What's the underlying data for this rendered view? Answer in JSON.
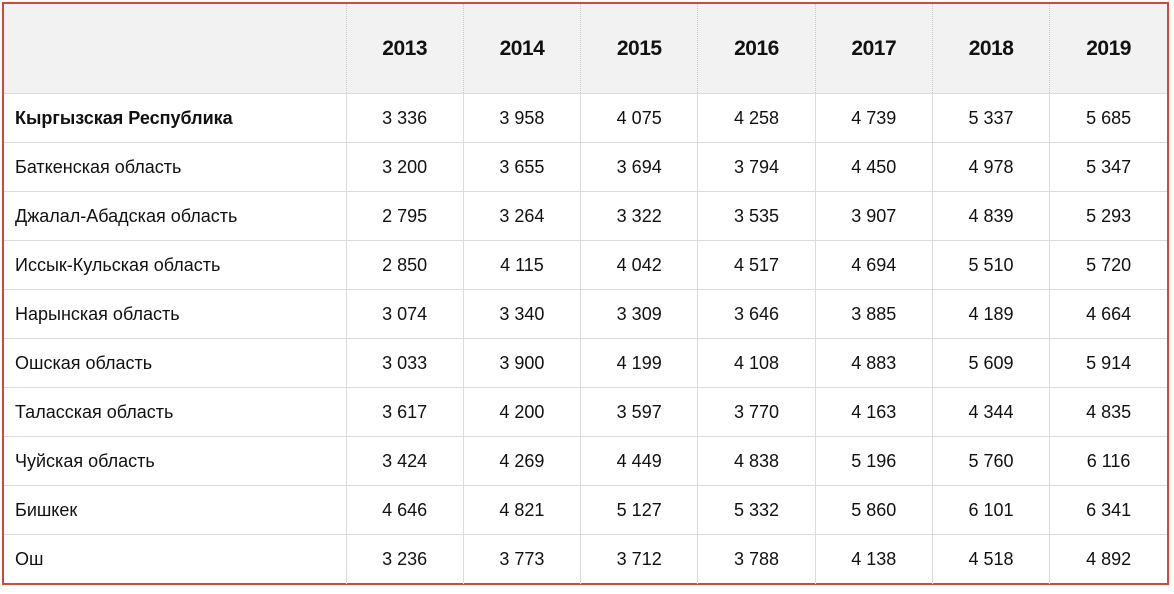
{
  "chart_data": {
    "type": "table",
    "categories": [
      "2013",
      "2014",
      "2015",
      "2016",
      "2017",
      "2018",
      "2019"
    ],
    "series": [
      {
        "name": "Кыргызская Республика",
        "values": [
          3336,
          3958,
          4075,
          4258,
          4739,
          5337,
          5685
        ]
      },
      {
        "name": "Баткенская область",
        "values": [
          3200,
          3655,
          3694,
          3794,
          4450,
          4978,
          5347
        ]
      },
      {
        "name": "Джалал-Абадская область",
        "values": [
          2795,
          3264,
          3322,
          3535,
          3907,
          4839,
          5293
        ]
      },
      {
        "name": "Иссык-Кульская область",
        "values": [
          2850,
          4115,
          4042,
          4517,
          4694,
          5510,
          5720
        ]
      },
      {
        "name": "Нарынская область",
        "values": [
          3074,
          3340,
          3309,
          3646,
          3885,
          4189,
          4664
        ]
      },
      {
        "name": "Ошская область",
        "values": [
          3033,
          3900,
          4199,
          4108,
          4883,
          5609,
          5914
        ]
      },
      {
        "name": "Таласская область",
        "values": [
          3617,
          4200,
          3597,
          3770,
          4163,
          4344,
          4835
        ]
      },
      {
        "name": "Чуйская область",
        "values": [
          3424,
          4269,
          4449,
          4838,
          5196,
          5760,
          6116
        ]
      },
      {
        "name": "Бишкек",
        "values": [
          4646,
          4821,
          5127,
          5332,
          5860,
          6101,
          6341
        ]
      },
      {
        "name": "Ош",
        "values": [
          3236,
          3773,
          3712,
          3788,
          4138,
          4518,
          4892
        ]
      }
    ],
    "first_series_bold": true,
    "number_format": "space-thousands",
    "corner_header": ""
  },
  "colors": {
    "outer_border": "#d04a3c",
    "header_background": "#f2f2f2",
    "gridline": "#dcdcdc"
  }
}
